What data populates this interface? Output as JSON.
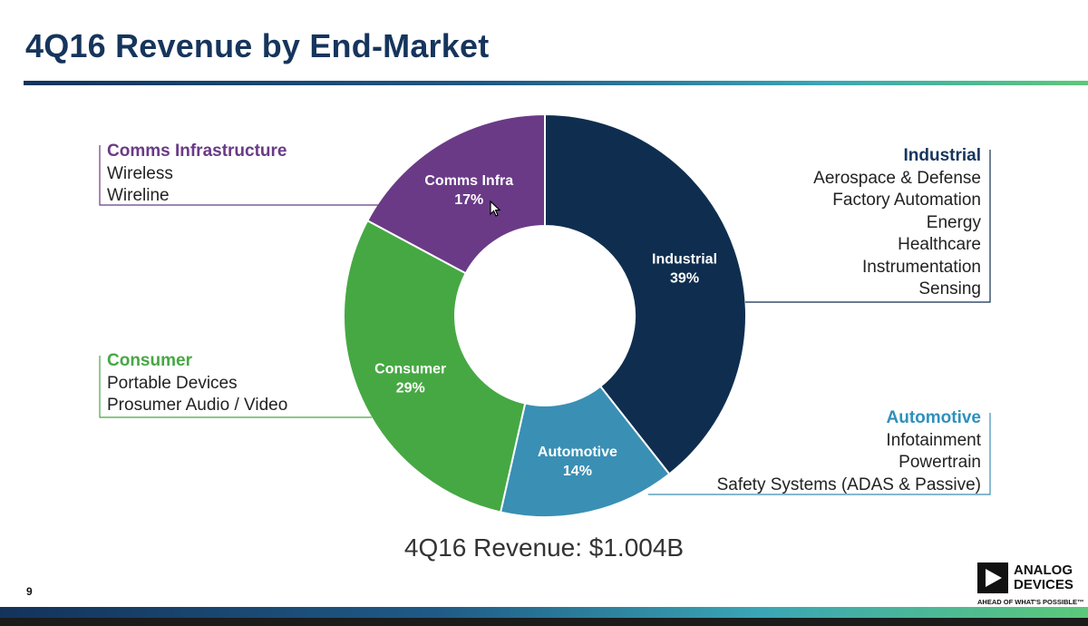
{
  "title": "4Q16 Revenue by End-Market",
  "revenue_text": "4Q16 Revenue: $1.004B",
  "page_number": "9",
  "logo": {
    "name_line1": "ANALOG",
    "name_line2": "DEVICES",
    "tagline": "AHEAD OF WHAT'S POSSIBLE™"
  },
  "colors": {
    "industrial": "#0f2e4f",
    "automotive": "#3a8fb4",
    "consumer": "#46a843",
    "comms": "#6a3a87",
    "title": "#16355c"
  },
  "chart_data": {
    "type": "pie",
    "donut": true,
    "start": "top",
    "direction": "clockwise",
    "slices": [
      {
        "name": "Industrial",
        "label": "Industrial",
        "value_text": "39%",
        "value": 39,
        "color": "#0f2e4f"
      },
      {
        "name": "Automotive",
        "label": "Automotive",
        "value_text": "14%",
        "value": 14,
        "color": "#3a8fb4"
      },
      {
        "name": "Consumer",
        "label": "Consumer",
        "value_text": "29%",
        "value": 29,
        "color": "#46a843"
      },
      {
        "name": "Comms Infrastructure",
        "label": "Comms Infra",
        "value_text": "17%",
        "value": 17,
        "color": "#6a3a87"
      }
    ]
  },
  "callouts": {
    "industrial": {
      "heading": "Industrial",
      "items": [
        "Aerospace & Defense",
        "Factory Automation",
        "Energy",
        "Healthcare",
        "Instrumentation",
        "Sensing"
      ]
    },
    "automotive": {
      "heading": "Automotive",
      "items": [
        "Infotainment",
        "Powertrain",
        "Safety Systems (ADAS & Passive)"
      ]
    },
    "consumer": {
      "heading": "Consumer",
      "items": [
        "Portable Devices",
        "Prosumer Audio / Video"
      ]
    },
    "comms": {
      "heading": "Comms Infrastructure",
      "items": [
        "Wireless",
        "Wireline"
      ]
    }
  }
}
